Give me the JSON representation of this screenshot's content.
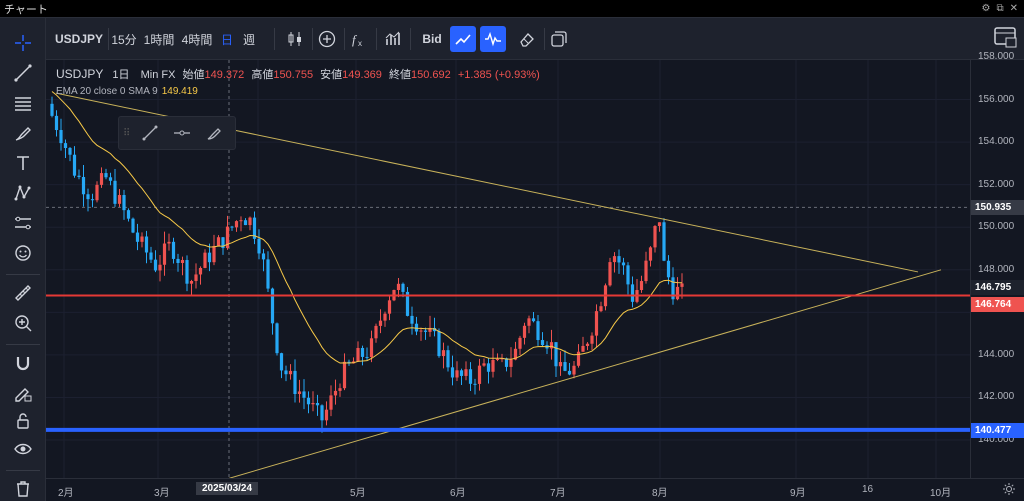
{
  "window": {
    "title": "チャート"
  },
  "toolbar": {
    "symbol": "USDJPY",
    "intervals": [
      "15分",
      "1時間",
      "4時間"
    ],
    "calendar_label": "日",
    "week_label": "週",
    "bid_label": "Bid"
  },
  "legend": {
    "symbol": "USDJPY",
    "interval": "1日",
    "source": "Min FX",
    "open_label": "始値",
    "open": "149.372",
    "high_label": "高値",
    "high": "150.755",
    "low_label": "安値",
    "low": "149.369",
    "close_label": "終値",
    "close": "150.692",
    "change": "+1.385 (+0.93%)",
    "indicator": "EMA 20 close 0 SMA 9",
    "indicator_value": "149.419"
  },
  "price_axis": {
    "ticks": [
      "158.000",
      "156.000",
      "154.000",
      "152.000",
      "150.000",
      "148.000",
      "144.000",
      "142.000",
      "140.000"
    ],
    "labels": [
      {
        "value": "150.935",
        "bg": "#363a45"
      },
      {
        "value": "146.795",
        "bg": "#1e222d"
      },
      {
        "value": "146.764",
        "bg": "#ef5350"
      },
      {
        "value": "140.477",
        "bg": "#2962ff"
      }
    ]
  },
  "time_axis": {
    "ticks": [
      "2月",
      "3月",
      "5月",
      "6月",
      "7月",
      "8月",
      "9月",
      "16",
      "10月"
    ],
    "crosshair_date": "2025/03/24"
  },
  "colors": {
    "up": "#ef5350",
    "down": "#26a8f5",
    "ema": "#f7c948",
    "trendline": "#c8b25a",
    "support": "#2962ff",
    "hline": "#e53935"
  }
}
